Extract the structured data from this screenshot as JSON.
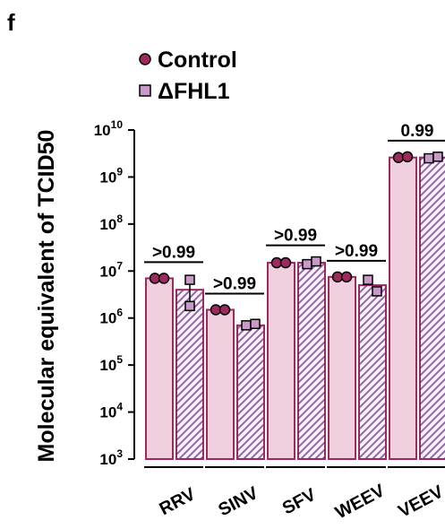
{
  "panel_label": "f",
  "chart_data": {
    "type": "bar",
    "ylabel": "Molecular equivalent of TCID50",
    "yscale": "log",
    "ylim": [
      1000,
      10000000000
    ],
    "yticks": [
      {
        "value": 1000,
        "base": "10",
        "exp": "3"
      },
      {
        "value": 10000,
        "base": "10",
        "exp": "4"
      },
      {
        "value": 100000,
        "base": "10",
        "exp": "5"
      },
      {
        "value": 1000000,
        "base": "10",
        "exp": "6"
      },
      {
        "value": 10000000,
        "base": "10",
        "exp": "7"
      },
      {
        "value": 100000000,
        "base": "10",
        "exp": "8"
      },
      {
        "value": 1000000000,
        "base": "10",
        "exp": "9"
      },
      {
        "value": 10000000000,
        "base": "10",
        "exp": "10"
      }
    ],
    "categories": [
      "RRV",
      "SINV",
      "SFV",
      "WEEV",
      "VEEV"
    ],
    "series": [
      {
        "name": "Control",
        "marker": "circle",
        "fill": "#f0d0de",
        "stroke": "#9c2a5e",
        "point_color": "#9c2a5e",
        "values": [
          7000000,
          1500000,
          15000000,
          7500000,
          2600000000
        ],
        "points": [
          [
            7000000,
            7000000
          ],
          [
            1500000,
            1500000
          ],
          [
            15000000,
            15000000
          ],
          [
            7500000,
            7500000
          ],
          [
            2600000000,
            2700000000
          ]
        ]
      },
      {
        "name": "ΔFHL1",
        "marker": "square",
        "fill": "#f0d0de",
        "stroke": "#9c2a5e",
        "hatch": "#8e6aa8",
        "point_color": "#c79ac8",
        "values": [
          4000000,
          700000,
          15000000,
          5000000,
          2600000000
        ],
        "points": [
          [
            6500000,
            1800000
          ],
          [
            700000,
            750000
          ],
          [
            14000000,
            16000000
          ],
          [
            6500000,
            3700000
          ],
          [
            2500000000,
            2700000000
          ]
        ],
        "error": [
          [
            1500000,
            7000000
          ],
          null,
          null,
          null,
          null
        ]
      }
    ],
    "comparisons": [
      {
        "category": "RRV",
        "label": ">0.99"
      },
      {
        "category": "SINV",
        "label": ">0.99"
      },
      {
        "category": "SFV",
        "label": ">0.99"
      },
      {
        "category": "WEEV",
        "label": ">0.99"
      },
      {
        "category": "VEEV",
        "label": "0.99"
      }
    ],
    "legend": {
      "placement": "top-left",
      "labels": [
        "Control",
        "ΔFHL1"
      ]
    }
  }
}
